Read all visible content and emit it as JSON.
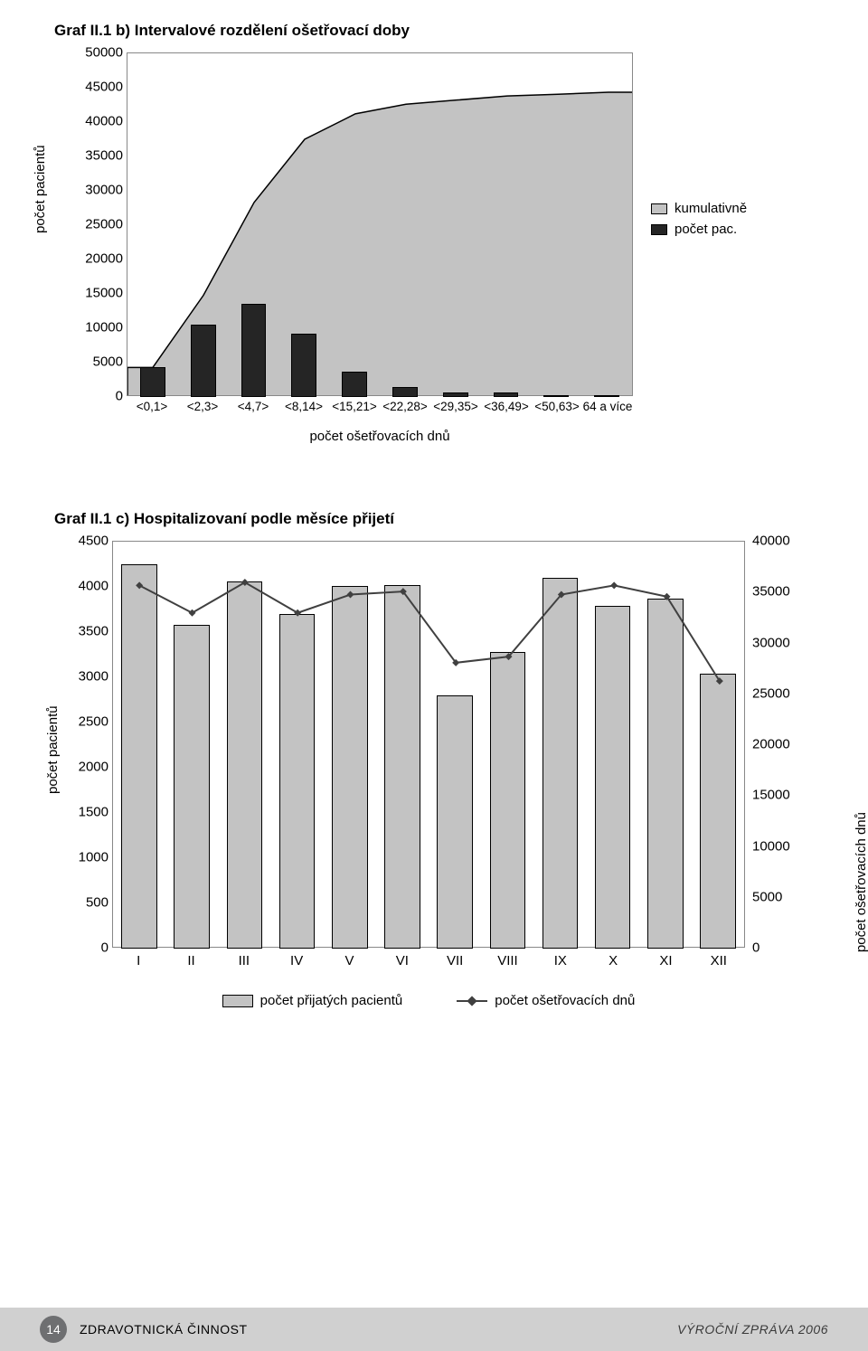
{
  "chart1": {
    "title": "Graf II.1 b) Intervalové rozdělení ošetřovací doby",
    "type": "bar+area",
    "y_axis_label": "počet pacientů",
    "y_ticks": [
      0,
      5000,
      10000,
      15000,
      20000,
      25000,
      30000,
      35000,
      40000,
      45000,
      50000
    ],
    "ylim": [
      0,
      50000
    ],
    "categories": [
      "<0,1>",
      "<2,3>",
      "<4,7>",
      "<8,14>",
      "<15,21>",
      "<22,28>",
      "<29,35>",
      "<36,49>",
      "<50,63>",
      "64 a více"
    ],
    "bar_values": [
      4300,
      10500,
      13500,
      9200,
      3700,
      1400,
      600,
      600,
      250,
      300
    ],
    "cumulative_values": [
      4300,
      14800,
      28300,
      37500,
      41200,
      42600,
      43200,
      43800,
      44050,
      44350
    ],
    "bar_color": "#252525",
    "area_color": "#c3c3c3",
    "area_border_color": "#000000",
    "x_axis_label": "počet ošetřovacích dnů",
    "legend": [
      {
        "label": "kumulativně",
        "swatch": "#c3c3c3"
      },
      {
        "label": "počet pac.",
        "swatch": "#252525"
      }
    ],
    "grid_color": "#888888",
    "background_color": "#ffffff",
    "title_fontsize": 17,
    "label_fontsize": 15,
    "bar_width": 0.5
  },
  "chart2": {
    "title": "Graf II.1 c) Hospitalizovaní podle měsíce přijetí",
    "type": "bar+line",
    "y_axis_left_label": "počet pacientů",
    "y_axis_right_label": "počet ošetřovacích dnů",
    "y_left_ticks": [
      0,
      500,
      1000,
      1500,
      2000,
      2500,
      3000,
      3500,
      4000,
      4500
    ],
    "y_left_lim": [
      0,
      4500
    ],
    "y_right_ticks": [
      0,
      5000,
      10000,
      15000,
      20000,
      25000,
      30000,
      35000,
      40000
    ],
    "y_right_lim": [
      0,
      40000
    ],
    "categories": [
      "I",
      "II",
      "III",
      "IV",
      "V",
      "VI",
      "VII",
      "VIII",
      "IX",
      "X",
      "XI",
      "XII"
    ],
    "bar_values": [
      4250,
      3580,
      4060,
      3700,
      4010,
      4020,
      2800,
      3280,
      4100,
      3790,
      3870,
      3040
    ],
    "line_values": [
      35700,
      33000,
      36000,
      33000,
      34800,
      35100,
      28100,
      28700,
      34800,
      35700,
      34600,
      26300
    ],
    "bar_color": "#c3c3c3",
    "bar_border_color": "#000000",
    "line_color": "#404040",
    "line_width": 2,
    "marker_shape": "diamond",
    "marker_size": 8,
    "marker_color": "#404040",
    "legend": [
      {
        "label": "počet přijatých pacientů",
        "type": "bar"
      },
      {
        "label": "počet ošetřovacích dnů",
        "type": "line"
      }
    ],
    "grid_color": "#888888",
    "background_color": "#ffffff",
    "title_fontsize": 17,
    "label_fontsize": 15,
    "bar_width": 0.68
  },
  "footer": {
    "page_number": "14",
    "section": "ZDRAVOTNICKÁ ČINNOST",
    "right": "VÝROČNÍ ZPRÁVA 2006",
    "bar_color": "#d0d0d0",
    "circle_color": "#6e6f71",
    "text_color": "#3a3a3a"
  }
}
